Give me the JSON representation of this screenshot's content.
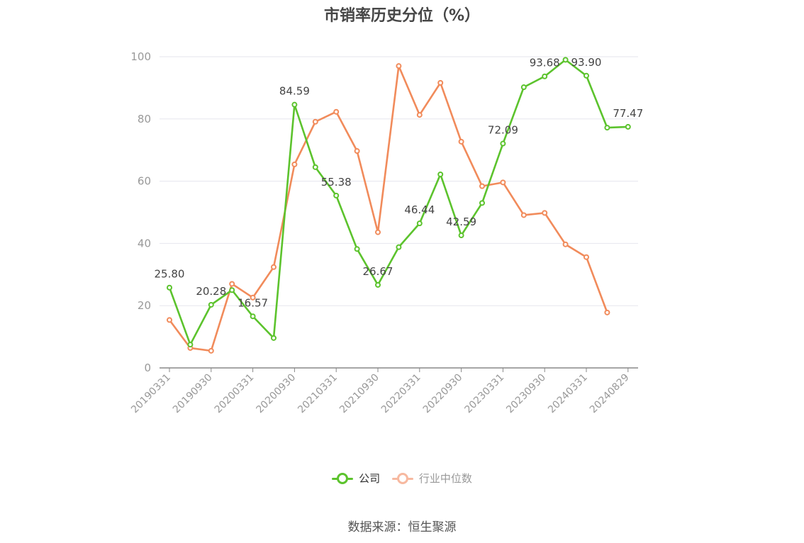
{
  "title": "市销率历史分位（%）",
  "source": "数据来源：恒生聚源",
  "colors": {
    "company": "#5cc32d",
    "industry": "#f18b5b",
    "grid": "#e6e6ee",
    "axis": "#888888",
    "tick_text": "#999999"
  },
  "chart_data": {
    "type": "line",
    "title": "市销率历史分位（%）",
    "xlabel": "",
    "ylabel": "",
    "ylim": [
      0,
      100
    ],
    "yticks": [
      0,
      20,
      40,
      60,
      80,
      100
    ],
    "x": [
      "20190331",
      "20190630",
      "20190930",
      "20191231",
      "20200331",
      "20200630",
      "20200930",
      "20201231",
      "20210331",
      "20210630",
      "20210930",
      "20211231",
      "20220331",
      "20220630",
      "20220930",
      "20221231",
      "20230331",
      "20230630",
      "20230930",
      "20231231",
      "20240331",
      "20240630",
      "20240829"
    ],
    "x_tick_labels": [
      "20190331",
      "20190930",
      "20200331",
      "20200930",
      "20210331",
      "20210930",
      "20220331",
      "20220930",
      "20230331",
      "20230930",
      "20240331",
      "20240829"
    ],
    "grid": true,
    "legend_position": "bottom",
    "series": [
      {
        "name": "公司",
        "values": [
          25.8,
          7.5,
          20.28,
          25.0,
          16.57,
          9.6,
          84.59,
          64.5,
          55.38,
          38.2,
          26.67,
          38.8,
          46.44,
          62.2,
          42.59,
          53.0,
          72.09,
          90.2,
          93.68,
          99.0,
          93.9,
          77.2,
          77.47
        ]
      },
      {
        "name": "行业中位数",
        "values": [
          15.4,
          6.4,
          5.5,
          27.0,
          22.6,
          32.4,
          65.4,
          79.1,
          82.3,
          69.7,
          43.6,
          97.0,
          81.3,
          91.6,
          72.7,
          58.4,
          59.6,
          49.1,
          49.8,
          39.7,
          35.6,
          17.8,
          null
        ]
      }
    ],
    "data_labels": [
      {
        "series": 0,
        "index": 0,
        "text": "25.80"
      },
      {
        "series": 0,
        "index": 2,
        "text": "20.28"
      },
      {
        "series": 0,
        "index": 4,
        "text": "16.57"
      },
      {
        "series": 0,
        "index": 6,
        "text": "84.59"
      },
      {
        "series": 0,
        "index": 8,
        "text": "55.38"
      },
      {
        "series": 0,
        "index": 10,
        "text": "26.67"
      },
      {
        "series": 0,
        "index": 12,
        "text": "46.44"
      },
      {
        "series": 0,
        "index": 14,
        "text": "42.59"
      },
      {
        "series": 0,
        "index": 16,
        "text": "72.09"
      },
      {
        "series": 0,
        "index": 18,
        "text": "93.68"
      },
      {
        "series": 0,
        "index": 20,
        "text": "93.90"
      },
      {
        "series": 0,
        "index": 22,
        "text": "77.47"
      }
    ]
  }
}
